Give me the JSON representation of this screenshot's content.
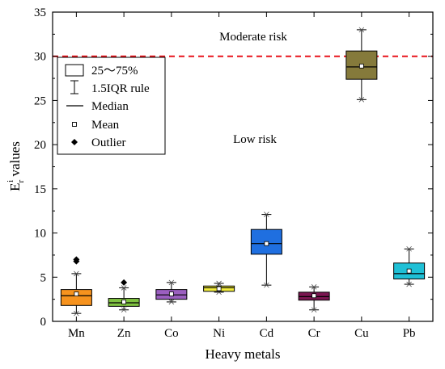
{
  "chart_data": {
    "type": "boxplot",
    "xlabel": "Heavy metals",
    "ylabel_main": "E",
    "ylabel_sup": "i",
    "ylabel_sub": "r",
    "ylabel_tail": " values",
    "ylim": [
      0,
      35
    ],
    "yticks": [
      0,
      5,
      10,
      15,
      20,
      25,
      30,
      35
    ],
    "grid": false,
    "legend_position": "top-left",
    "threshold": {
      "value": 30,
      "color": "#e8141c"
    },
    "zone_labels": {
      "upper": "Moderate risk",
      "lower": "Low risk"
    },
    "legend": {
      "box": "25～75%",
      "whisker": "1.5IQR rule",
      "median": "Median",
      "mean": "Mean",
      "outlier": "Outlier"
    },
    "categories": [
      "Mn",
      "Zn",
      "Co",
      "Ni",
      "Cd",
      "Cr",
      "Cu",
      "Pb"
    ],
    "boxes": [
      {
        "name": "Mn",
        "color": "#f7931e",
        "min": 0.9,
        "q1": 1.8,
        "median": 2.9,
        "q3": 3.6,
        "max": 5.4,
        "mean": 3.1,
        "outliers": [
          6.8,
          7.0
        ]
      },
      {
        "name": "Zn",
        "color": "#7fc241",
        "min": 1.3,
        "q1": 1.7,
        "median": 2.1,
        "q3": 2.6,
        "max": 3.8,
        "mean": 2.2,
        "outliers": [
          4.4
        ]
      },
      {
        "name": "Co",
        "color": "#9b5fc0",
        "min": 2.2,
        "q1": 2.5,
        "median": 3.0,
        "q3": 3.6,
        "max": 4.4,
        "mean": 3.1,
        "outliers": []
      },
      {
        "name": "Ni",
        "color": "#f2ec3c",
        "min": 3.3,
        "q1": 3.4,
        "median": 3.8,
        "q3": 4.0,
        "max": 4.3,
        "mean": 3.7,
        "outliers": []
      },
      {
        "name": "Cd",
        "color": "#1f6fe0",
        "min": 4.1,
        "q1": 7.6,
        "median": 8.8,
        "q3": 10.4,
        "max": 12.1,
        "mean": 8.8,
        "outliers": []
      },
      {
        "name": "Cr",
        "color": "#7a1650",
        "min": 1.3,
        "q1": 2.4,
        "median": 2.8,
        "q3": 3.3,
        "max": 3.9,
        "mean": 2.9,
        "outliers": []
      },
      {
        "name": "Cu",
        "color": "#857a3b",
        "min": 25.1,
        "q1": 27.4,
        "median": 28.8,
        "q3": 30.6,
        "max": 33.0,
        "mean": 28.9,
        "outliers": []
      },
      {
        "name": "Pb",
        "color": "#1fc0d6",
        "min": 4.2,
        "q1": 4.8,
        "median": 5.4,
        "q3": 6.6,
        "max": 8.2,
        "mean": 5.7,
        "outliers": []
      }
    ]
  }
}
